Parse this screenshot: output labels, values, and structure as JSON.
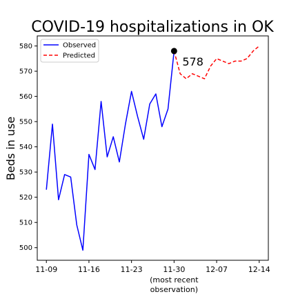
{
  "chart_data": {
    "type": "line",
    "title": "COVID-19 hospitalizations in OK",
    "ylabel": "Beds in use",
    "xlabel": "",
    "ylim": [
      495,
      584
    ],
    "y_ticks": [
      500,
      510,
      520,
      530,
      540,
      550,
      560,
      570,
      580
    ],
    "x_tick_labels": [
      {
        "date": "2020-11-09",
        "label": "11-09"
      },
      {
        "date": "2020-11-16",
        "label": "11-16"
      },
      {
        "date": "2020-11-23",
        "label": "11-23"
      },
      {
        "date": "2020-11-30",
        "label": "11-30",
        "note_line1": "(most recent",
        "note_line2": "observation)"
      },
      {
        "date": "2020-12-07",
        "label": "12-07"
      },
      {
        "date": "2020-12-14",
        "label": "12-14"
      }
    ],
    "xlim": [
      "2020-11-07T12:00",
      "2020-12-15T12:00"
    ],
    "legend_position": "upper-left",
    "series": [
      {
        "name": "Observed",
        "color": "#0000ff",
        "style": "solid",
        "points": [
          [
            "2020-11-09",
            523
          ],
          [
            "2020-11-10",
            549
          ],
          [
            "2020-11-11",
            519
          ],
          [
            "2020-11-12",
            529
          ],
          [
            "2020-11-13",
            528
          ],
          [
            "2020-11-14",
            509
          ],
          [
            "2020-11-15",
            499
          ],
          [
            "2020-11-16",
            537
          ],
          [
            "2020-11-17",
            531
          ],
          [
            "2020-11-18",
            558
          ],
          [
            "2020-11-19",
            536
          ],
          [
            "2020-11-20",
            544
          ],
          [
            "2020-11-21",
            534
          ],
          [
            "2020-11-22",
            549
          ],
          [
            "2020-11-23",
            562
          ],
          [
            "2020-11-24",
            552
          ],
          [
            "2020-11-25",
            543
          ],
          [
            "2020-11-26",
            557
          ],
          [
            "2020-11-27",
            561
          ],
          [
            "2020-11-28",
            548
          ],
          [
            "2020-11-29",
            555
          ],
          [
            "2020-11-30",
            578
          ]
        ]
      },
      {
        "name": "Predicted",
        "color": "#ff0000",
        "style": "dashed",
        "points": [
          [
            "2020-11-30",
            578
          ],
          [
            "2020-12-01",
            569
          ],
          [
            "2020-12-02",
            567
          ],
          [
            "2020-12-03",
            569
          ],
          [
            "2020-12-04",
            568
          ],
          [
            "2020-12-05",
            567
          ],
          [
            "2020-12-06",
            572
          ],
          [
            "2020-12-07",
            575
          ],
          [
            "2020-12-08",
            574
          ],
          [
            "2020-12-09",
            573
          ],
          [
            "2020-12-10",
            574
          ],
          [
            "2020-12-11",
            574
          ],
          [
            "2020-12-12",
            575
          ],
          [
            "2020-12-13",
            578
          ],
          [
            "2020-12-14",
            580
          ]
        ]
      }
    ],
    "highlight": {
      "date": "2020-11-30",
      "value": 578,
      "label": "578",
      "color": "#000000"
    }
  }
}
